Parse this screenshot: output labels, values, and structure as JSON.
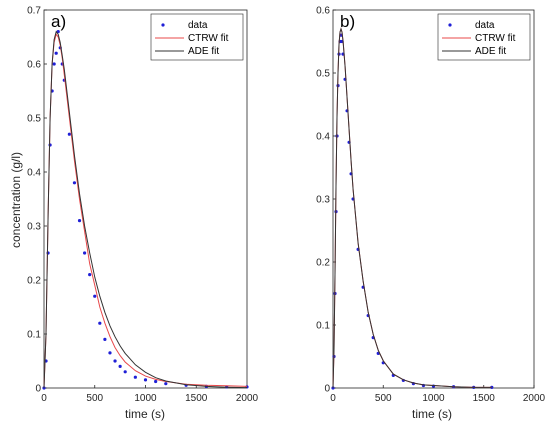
{
  "chart_data": [
    {
      "type": "line",
      "panel_label": "a)",
      "xlabel": "time (s)",
      "ylabel": "concentration (g/l)",
      "xlim": [
        0,
        2000
      ],
      "ylim": [
        0,
        0.7
      ],
      "xticks": [
        0,
        500,
        1000,
        1500,
        2000
      ],
      "yticks": [
        0,
        0.1,
        0.2,
        0.3,
        0.4,
        0.5,
        0.6,
        0.7
      ],
      "xtick_labels": [
        "0",
        "500",
        "1000",
        "1500",
        "2000"
      ],
      "ytick_labels": [
        "0",
        "0.1",
        "0.2",
        "0.3",
        "0.4",
        "0.5",
        "0.6",
        "0.7"
      ],
      "legend": "top-right",
      "series": [
        {
          "name": "data",
          "style": "points",
          "color": "#1f1fd6",
          "x": [
            0,
            20,
            40,
            60,
            80,
            100,
            120,
            140,
            160,
            180,
            200,
            250,
            300,
            350,
            400,
            450,
            500,
            550,
            600,
            650,
            700,
            750,
            800,
            900,
            1000,
            1100,
            1200,
            1400,
            1600,
            1800,
            2000
          ],
          "y": [
            0,
            0.05,
            0.25,
            0.45,
            0.55,
            0.6,
            0.62,
            0.66,
            0.63,
            0.6,
            0.57,
            0.47,
            0.38,
            0.31,
            0.25,
            0.21,
            0.17,
            0.12,
            0.09,
            0.065,
            0.05,
            0.04,
            0.03,
            0.02,
            0.015,
            0.012,
            0.008,
            0.005,
            0.003,
            0.002,
            0.002
          ]
        },
        {
          "name": "CTRW fit",
          "style": "line",
          "color": "#e8484a",
          "x": [
            0,
            20,
            40,
            60,
            80,
            100,
            120,
            140,
            160,
            180,
            200,
            250,
            300,
            350,
            400,
            450,
            500,
            550,
            600,
            650,
            700,
            750,
            800,
            900,
            1000,
            1100,
            1200,
            1400,
            1600,
            1800,
            2000
          ],
          "y": [
            0,
            0.1,
            0.32,
            0.5,
            0.6,
            0.64,
            0.655,
            0.65,
            0.635,
            0.61,
            0.58,
            0.5,
            0.42,
            0.35,
            0.29,
            0.23,
            0.19,
            0.15,
            0.12,
            0.095,
            0.075,
            0.06,
            0.048,
            0.032,
            0.022,
            0.016,
            0.012,
            0.007,
            0.005,
            0.004,
            0.003
          ]
        },
        {
          "name": "ADE fit",
          "style": "line",
          "color": "#333333",
          "x": [
            0,
            20,
            40,
            60,
            80,
            100,
            120,
            140,
            160,
            180,
            200,
            250,
            300,
            350,
            400,
            450,
            500,
            550,
            600,
            650,
            700,
            750,
            800,
            900,
            1000,
            1100,
            1200,
            1400,
            1600,
            1800,
            2000
          ],
          "y": [
            0,
            0.1,
            0.32,
            0.5,
            0.6,
            0.645,
            0.66,
            0.655,
            0.64,
            0.615,
            0.59,
            0.51,
            0.43,
            0.36,
            0.3,
            0.25,
            0.205,
            0.17,
            0.14,
            0.115,
            0.095,
            0.078,
            0.064,
            0.043,
            0.029,
            0.019,
            0.013,
            0.006,
            0.003,
            0.0015,
            0.0008
          ]
        }
      ]
    },
    {
      "type": "line",
      "panel_label": "b)",
      "xlabel": "time (s)",
      "ylabel": "",
      "xlim": [
        0,
        2000
      ],
      "ylim": [
        0,
        0.6
      ],
      "xticks": [
        0,
        500,
        1000,
        1500,
        2000
      ],
      "yticks": [
        0,
        0.1,
        0.2,
        0.3,
        0.4,
        0.5,
        0.6
      ],
      "xtick_labels": [
        "0",
        "500",
        "1000",
        "1500",
        "2000"
      ],
      "ytick_labels": [
        "0",
        "0.1",
        "0.2",
        "0.3",
        "0.4",
        "0.5",
        "0.6"
      ],
      "legend": "top-right",
      "series": [
        {
          "name": "data",
          "style": "points",
          "color": "#1f1fd6",
          "x": [
            0,
            10,
            20,
            30,
            40,
            50,
            60,
            70,
            80,
            90,
            100,
            120,
            140,
            160,
            180,
            200,
            250,
            300,
            350,
            400,
            450,
            500,
            600,
            700,
            800,
            900,
            1000,
            1200,
            1400,
            1580
          ],
          "y": [
            0,
            0.05,
            0.15,
            0.28,
            0.4,
            0.48,
            0.53,
            0.55,
            0.56,
            0.55,
            0.53,
            0.49,
            0.44,
            0.39,
            0.34,
            0.3,
            0.22,
            0.16,
            0.115,
            0.08,
            0.055,
            0.04,
            0.02,
            0.012,
            0.007,
            0.004,
            0.003,
            0.002,
            0.001,
            0.001
          ]
        },
        {
          "name": "CTRW fit",
          "style": "line",
          "color": "#e8484a",
          "x": [
            0,
            10,
            20,
            30,
            40,
            50,
            60,
            70,
            80,
            90,
            100,
            120,
            140,
            160,
            180,
            200,
            250,
            300,
            350,
            400,
            450,
            500,
            600,
            700,
            800,
            900,
            1000,
            1200,
            1400,
            1580
          ],
          "y": [
            0,
            0.06,
            0.18,
            0.32,
            0.43,
            0.5,
            0.545,
            0.565,
            0.57,
            0.565,
            0.55,
            0.51,
            0.46,
            0.41,
            0.36,
            0.315,
            0.23,
            0.17,
            0.12,
            0.085,
            0.06,
            0.043,
            0.022,
            0.013,
            0.008,
            0.005,
            0.004,
            0.002,
            0.001,
            0.001
          ]
        },
        {
          "name": "ADE fit",
          "style": "line",
          "color": "#333333",
          "x": [
            0,
            10,
            20,
            30,
            40,
            50,
            60,
            70,
            80,
            90,
            100,
            120,
            140,
            160,
            180,
            200,
            250,
            300,
            350,
            400,
            450,
            500,
            600,
            700,
            800,
            900,
            1000,
            1200,
            1400,
            1580
          ],
          "y": [
            0,
            0.06,
            0.18,
            0.32,
            0.43,
            0.5,
            0.545,
            0.565,
            0.57,
            0.565,
            0.55,
            0.51,
            0.46,
            0.41,
            0.36,
            0.315,
            0.23,
            0.17,
            0.12,
            0.085,
            0.06,
            0.043,
            0.022,
            0.013,
            0.008,
            0.005,
            0.004,
            0.002,
            0.001,
            0.001
          ]
        }
      ]
    }
  ]
}
